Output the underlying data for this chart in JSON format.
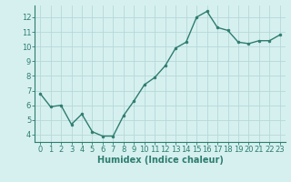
{
  "x": [
    0,
    1,
    2,
    3,
    4,
    5,
    6,
    7,
    8,
    9,
    10,
    11,
    12,
    13,
    14,
    15,
    16,
    17,
    18,
    19,
    20,
    21,
    22,
    23
  ],
  "y": [
    6.8,
    5.9,
    6.0,
    4.7,
    5.4,
    4.2,
    3.9,
    3.9,
    5.3,
    6.3,
    7.4,
    7.9,
    8.7,
    9.9,
    10.3,
    12.0,
    12.4,
    11.3,
    11.1,
    10.3,
    10.2,
    10.4,
    10.4,
    10.8
  ],
  "line_color": "#2e7d6e",
  "marker": "o",
  "marker_size": 2,
  "line_width": 1.0,
  "bg_color": "#d6f0f0",
  "grid_color": "#b8d8d8",
  "xlabel": "Humidex (Indice chaleur)",
  "xlabel_fontsize": 7,
  "xlim": [
    -0.5,
    23.5
  ],
  "ylim": [
    3.5,
    12.8
  ],
  "yticks": [
    4,
    5,
    6,
    7,
    8,
    9,
    10,
    11,
    12
  ],
  "xticks": [
    0,
    1,
    2,
    3,
    4,
    5,
    6,
    7,
    8,
    9,
    10,
    11,
    12,
    13,
    14,
    15,
    16,
    17,
    18,
    19,
    20,
    21,
    22,
    23
  ],
  "tick_fontsize": 6,
  "figure_bg": "#d6f0f0",
  "spine_color": "#2e7d6e"
}
